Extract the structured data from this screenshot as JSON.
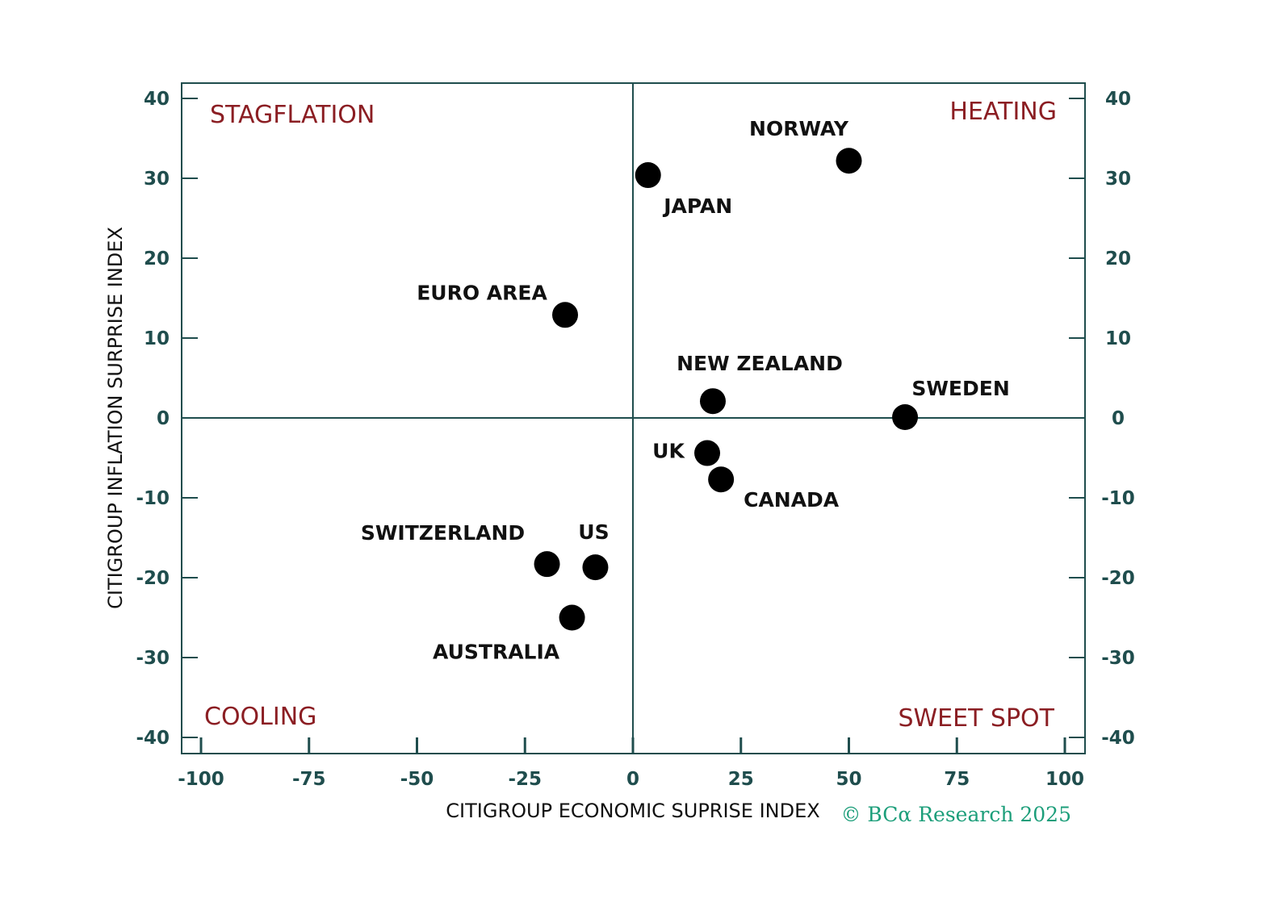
{
  "chart_data": {
    "type": "scatter",
    "xlabel": "CITIGROUP ECONOMIC SUPRISE INDEX",
    "ylabel": "CITIGROUP INFLATION SURPRISE INDEX",
    "xlim": [
      -100,
      100
    ],
    "ylim": [
      -40,
      40
    ],
    "x_ticks": [
      "-100",
      "-75",
      "-50",
      "-25",
      "0",
      "25",
      "50",
      "75",
      "100"
    ],
    "y_ticks": [
      "40",
      "30",
      "20",
      "10",
      "0",
      "-10",
      "-20",
      "-30",
      "-40"
    ],
    "grid": false,
    "quadrants": {
      "top_left": "STAGFLATION",
      "top_right": "HEATING",
      "bottom_left": "COOLING",
      "bottom_right": "SWEET SPOT"
    },
    "points": [
      {
        "label": "NORWAY",
        "x": 50,
        "y": 32.2
      },
      {
        "label": "JAPAN",
        "x": 3.5,
        "y": 30.4
      },
      {
        "label": "EURO AREA",
        "x": -15.7,
        "y": 12.9
      },
      {
        "label": "NEW ZEALAND",
        "x": 18.5,
        "y": 2.1
      },
      {
        "label": "SWEDEN",
        "x": 63,
        "y": 0.1
      },
      {
        "label": "UK",
        "x": 17.2,
        "y": -4.4
      },
      {
        "label": "CANADA",
        "x": 20.4,
        "y": -7.7
      },
      {
        "label": "SWITZERLAND",
        "x": -19.9,
        "y": -18.3
      },
      {
        "label": "US",
        "x": -8.7,
        "y": -18.7
      },
      {
        "label": "AUSTRALIA",
        "x": -14.1,
        "y": -25
      }
    ],
    "point_color": "#000000",
    "quadrant_label_color": "#8b1e23",
    "axis_color": "#1f4d4d"
  },
  "credit": "© BCα Research 2025"
}
